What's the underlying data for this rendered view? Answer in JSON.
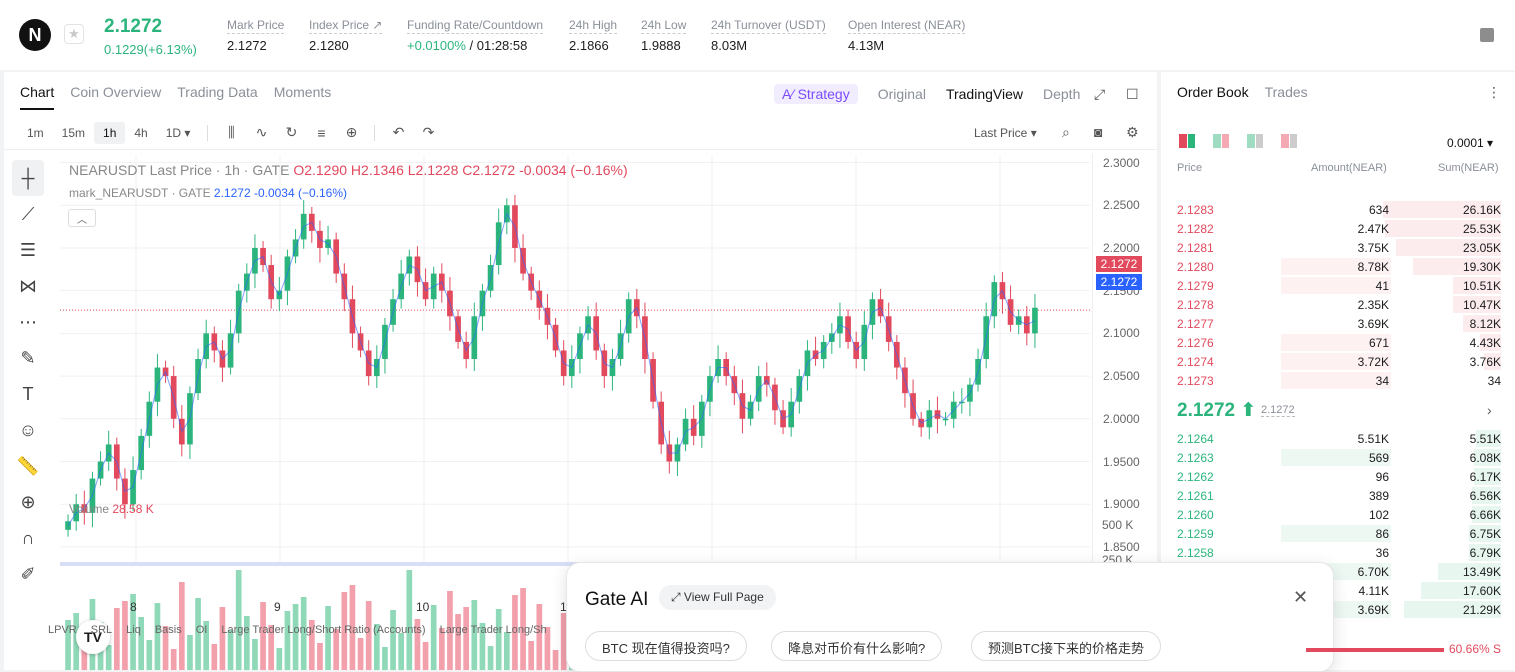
{
  "header": {
    "logo_letter": "N",
    "price": "2.1272",
    "change": "0.1229(+6.13%)",
    "stats": [
      {
        "label": "Mark Price",
        "value": "2.1272"
      },
      {
        "label": "Index Price ↗",
        "value": "2.1280"
      },
      {
        "label": "Funding Rate/Countdown",
        "value_green": "+0.0100%",
        "value": " / 01:28:58"
      },
      {
        "label": "24h High",
        "value": "2.1866"
      },
      {
        "label": "24h Low",
        "value": "1.9888"
      },
      {
        "label": "24h Turnover (USDT)",
        "value": "8.03M"
      },
      {
        "label": "Open Interest (NEAR)",
        "value": "4.13M"
      }
    ]
  },
  "chart_tabs": [
    "Chart",
    "Coin Overview",
    "Trading Data",
    "Moments"
  ],
  "view_tabs": {
    "strategy": "A⁄ Strategy",
    "original": "Original",
    "tradingview": "TradingView",
    "depth": "Depth"
  },
  "timeframes": [
    "1m",
    "15m",
    "1h",
    "4h",
    "1D ▾"
  ],
  "last_price_select": "Last Price ▾",
  "legend": {
    "symbol": "NEARUSDT Last Price · 1h · GATE",
    "ohlc": "O2.1290 H2.1346 L2.1228 C2.1272 -0.0034 (−0.16%)",
    "mark_label": "mark_NEARUSDT · GATE",
    "mark_vals": "2.1272 -0.0034 (−0.16%)",
    "volume_label": "Volume",
    "volume_val": "28.58 K"
  },
  "price_tags": {
    "red": "2.1272",
    "blue": "2.1272"
  },
  "volume_ticks": [
    "500 K",
    "250 K"
  ],
  "x_labels": [
    "8",
    "9",
    "10",
    "1"
  ],
  "bottom_indicators": [
    "LPVR",
    "SRL",
    "Liq",
    "Basis",
    "OI",
    "Large Trader Long/Short Ratio (Accounts)",
    "Large Trader Long/Sh"
  ],
  "chart_data": {
    "type": "candlestick",
    "y_ticks": [
      "2.3000",
      "2.2500",
      "2.2000",
      "2.1500",
      "2.1000",
      "2.0500",
      "2.0000",
      "1.9500",
      "1.9000",
      "1.8500"
    ],
    "ylim": [
      1.83,
      2.31
    ],
    "last_price": 2.1272,
    "closes": [
      1.88,
      1.9,
      1.89,
      1.93,
      1.95,
      1.97,
      1.93,
      1.9,
      1.94,
      1.98,
      2.02,
      2.06,
      2.05,
      2.0,
      1.97,
      2.03,
      2.07,
      2.1,
      2.08,
      2.06,
      2.1,
      2.15,
      2.17,
      2.2,
      2.18,
      2.14,
      2.15,
      2.19,
      2.21,
      2.24,
      2.22,
      2.2,
      2.21,
      2.17,
      2.14,
      2.1,
      2.08,
      2.05,
      2.07,
      2.11,
      2.14,
      2.17,
      2.19,
      2.16,
      2.14,
      2.17,
      2.15,
      2.12,
      2.09,
      2.07,
      2.12,
      2.15,
      2.18,
      2.23,
      2.25,
      2.2,
      2.17,
      2.15,
      2.13,
      2.11,
      2.08,
      2.05,
      2.07,
      2.1,
      2.12,
      2.08,
      2.05,
      2.07,
      2.1,
      2.14,
      2.12,
      2.07,
      2.02,
      1.97,
      1.95,
      1.97,
      2.0,
      1.98,
      2.02,
      2.05,
      2.07,
      2.05,
      2.03,
      2.0,
      2.02,
      2.05,
      2.04,
      2.01,
      1.99,
      2.02,
      2.05,
      2.08,
      2.07,
      2.09,
      2.1,
      2.12,
      2.09,
      2.07,
      2.11,
      2.14,
      2.12,
      2.09,
      2.06,
      2.03,
      2.0,
      1.99,
      2.01,
      2.0,
      2.0,
      2.02,
      2.02,
      2.04,
      2.07,
      2.12,
      2.16,
      2.14,
      2.11,
      2.12,
      2.1,
      2.13
    ]
  },
  "order_book": {
    "tabs": [
      "Order Book",
      "Trades"
    ],
    "precision": "0.0001 ▾",
    "headers": {
      "price": "Price",
      "amount": "Amount(NEAR)",
      "sum": "Sum(NEAR)"
    },
    "asks": [
      {
        "price": "2.1283",
        "amount": "634",
        "sum": "26.16K",
        "amt_frac": 0.0,
        "sum_frac": 0.56
      },
      {
        "price": "2.1282",
        "amount": "2.47K",
        "sum": "25.53K",
        "amt_frac": 0.0,
        "sum_frac": 0.55
      },
      {
        "price": "2.1281",
        "amount": "3.75K",
        "sum": "23.05K",
        "amt_frac": 0.0,
        "sum_frac": 0.5
      },
      {
        "price": "2.1280",
        "amount": "8.78K",
        "sum": "19.30K",
        "amt_frac": 0.62,
        "sum_frac": 0.42
      },
      {
        "price": "2.1279",
        "amount": "41",
        "sum": "10.51K",
        "amt_frac": 0.62,
        "sum_frac": 0.23
      },
      {
        "price": "2.1278",
        "amount": "2.35K",
        "sum": "10.47K",
        "amt_frac": 0.0,
        "sum_frac": 0.23
      },
      {
        "price": "2.1277",
        "amount": "3.69K",
        "sum": "8.12K",
        "amt_frac": 0.0,
        "sum_frac": 0.18
      },
      {
        "price": "2.1276",
        "amount": "671",
        "sum": "4.43K",
        "amt_frac": 0.62,
        "sum_frac": 0.1
      },
      {
        "price": "2.1274",
        "amount": "3.72K",
        "sum": "3.76K",
        "amt_frac": 0.62,
        "sum_frac": 0.08
      },
      {
        "price": "2.1273",
        "amount": "34",
        "sum": "34",
        "amt_frac": 0.62,
        "sum_frac": 0.0
      }
    ],
    "mid": {
      "price": "2.1272 ⬆",
      "mark": "2.1272"
    },
    "bids": [
      {
        "price": "2.1264",
        "amount": "5.51K",
        "sum": "5.51K",
        "amt_frac": 0.0,
        "sum_frac": 0.12
      },
      {
        "price": "2.1263",
        "amount": "569",
        "sum": "6.08K",
        "amt_frac": 0.62,
        "sum_frac": 0.13
      },
      {
        "price": "2.1262",
        "amount": "96",
        "sum": "6.17K",
        "amt_frac": 0.0,
        "sum_frac": 0.13
      },
      {
        "price": "2.1261",
        "amount": "389",
        "sum": "6.56K",
        "amt_frac": 0.0,
        "sum_frac": 0.14
      },
      {
        "price": "2.1260",
        "amount": "102",
        "sum": "6.66K",
        "amt_frac": 0.0,
        "sum_frac": 0.14
      },
      {
        "price": "2.1259",
        "amount": "86",
        "sum": "6.75K",
        "amt_frac": 0.62,
        "sum_frac": 0.15
      },
      {
        "price": "2.1258",
        "amount": "36",
        "sum": "6.79K",
        "amt_frac": 0.0,
        "sum_frac": 0.15
      },
      {
        "price": "",
        "amount": "6.70K",
        "sum": "13.49K",
        "amt_frac": 0.62,
        "sum_frac": 0.3
      },
      {
        "price": "",
        "amount": "4.11K",
        "sum": "17.60K",
        "amt_frac": 0.0,
        "sum_frac": 0.38
      },
      {
        "price": "",
        "amount": "3.69K",
        "sum": "21.29K",
        "amt_frac": 0.62,
        "sum_frac": 0.46
      }
    ],
    "ratio_label": "60.66% S"
  },
  "ai_popup": {
    "title": "Gate AI",
    "view_full": "⤢  View Full Page",
    "questions": [
      "BTC 现在值得投资吗?",
      "降息对币价有什么影响?",
      "预测BTC接下来的价格走势"
    ]
  },
  "colors": {
    "up": "#2bb57d",
    "down": "#e2495d",
    "accent": "#7b4dfc",
    "mark_blue": "#2962ff"
  }
}
